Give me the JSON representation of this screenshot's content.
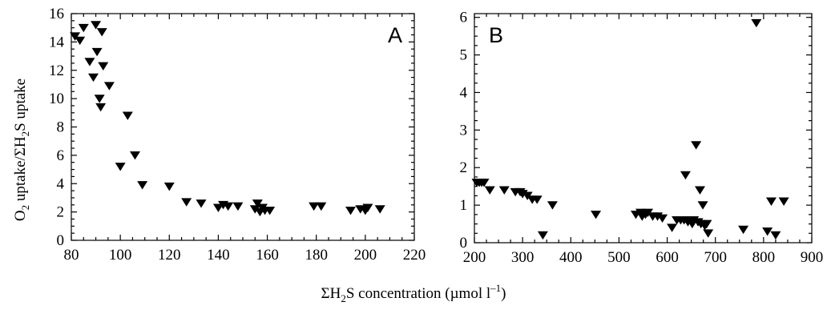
{
  "chart_data": [
    {
      "type": "scatter",
      "panel_label": "A",
      "marker": "filled down-triangle",
      "x_ticks": [
        "80",
        "100",
        "120",
        "140",
        "160",
        "180",
        "200",
        "220"
      ],
      "y_ticks": [
        "0",
        "2",
        "4",
        "6",
        "8",
        "10",
        "12",
        "14",
        "16"
      ],
      "xlim": [
        80,
        220
      ],
      "ylim": [
        0,
        16
      ],
      "ylabel_main": "O",
      "ylabel_sub": "2",
      "ylabel_rest": " uptake/ΣH",
      "ylabel_sub2": "2",
      "ylabel_end": "S uptake",
      "points": [
        [
          81.5,
          14.4
        ],
        [
          83.5,
          14.1
        ],
        [
          85,
          15.0
        ],
        [
          87.5,
          12.6
        ],
        [
          89,
          11.5
        ],
        [
          90,
          15.2
        ],
        [
          90.5,
          13.3
        ],
        [
          91.5,
          10.0
        ],
        [
          92,
          9.4
        ],
        [
          92.5,
          14.7
        ],
        [
          93,
          12.3
        ],
        [
          95.5,
          10.9
        ],
        [
          100,
          5.2
        ],
        [
          103,
          8.8
        ],
        [
          106,
          6.0
        ],
        [
          109,
          3.9
        ],
        [
          120,
          3.8
        ],
        [
          127,
          2.7
        ],
        [
          133,
          2.6
        ],
        [
          140,
          2.3
        ],
        [
          142,
          2.5
        ],
        [
          144,
          2.4
        ],
        [
          148,
          2.4
        ],
        [
          155,
          2.2
        ],
        [
          156,
          2.6
        ],
        [
          157,
          2.0
        ],
        [
          158,
          2.3
        ],
        [
          159,
          2.1
        ],
        [
          161,
          2.1
        ],
        [
          179,
          2.4
        ],
        [
          182,
          2.4
        ],
        [
          194,
          2.1
        ],
        [
          198,
          2.2
        ],
        [
          200,
          2.1
        ],
        [
          201,
          2.3
        ],
        [
          206,
          2.2
        ]
      ]
    },
    {
      "type": "scatter",
      "panel_label": "B",
      "marker": "filled down-triangle",
      "x_ticks": [
        "200",
        "300",
        "400",
        "500",
        "600",
        "700",
        "800",
        "900"
      ],
      "y_ticks": [
        "0",
        "1",
        "2",
        "3",
        "4",
        "5",
        "6"
      ],
      "xlim": [
        200,
        900
      ],
      "ylim": [
        0,
        6.1
      ],
      "points": [
        [
          205,
          1.6
        ],
        [
          210,
          1.6
        ],
        [
          215,
          1.6
        ],
        [
          220,
          1.6
        ],
        [
          232,
          1.4
        ],
        [
          262,
          1.4
        ],
        [
          285,
          1.35
        ],
        [
          295,
          1.35
        ],
        [
          300,
          1.3
        ],
        [
          310,
          1.25
        ],
        [
          320,
          1.15
        ],
        [
          330,
          1.15
        ],
        [
          342,
          0.2
        ],
        [
          362,
          1.0
        ],
        [
          452,
          0.75
        ],
        [
          535,
          0.75
        ],
        [
          545,
          0.8
        ],
        [
          548,
          0.7
        ],
        [
          555,
          0.75
        ],
        [
          560,
          0.8
        ],
        [
          570,
          0.7
        ],
        [
          580,
          0.7
        ],
        [
          590,
          0.65
        ],
        [
          610,
          0.4
        ],
        [
          620,
          0.6
        ],
        [
          628,
          0.6
        ],
        [
          635,
          0.6
        ],
        [
          638,
          1.8
        ],
        [
          643,
          0.55
        ],
        [
          648,
          0.6
        ],
        [
          652,
          0.5
        ],
        [
          655,
          0.6
        ],
        [
          660,
          2.6
        ],
        [
          664,
          0.55
        ],
        [
          668,
          1.4
        ],
        [
          670,
          0.5
        ],
        [
          674,
          1.0
        ],
        [
          678,
          0.45
        ],
        [
          682,
          0.5
        ],
        [
          685,
          0.25
        ],
        [
          758,
          0.35
        ],
        [
          785,
          5.85
        ],
        [
          808,
          0.3
        ],
        [
          816,
          1.1
        ],
        [
          825,
          0.2
        ],
        [
          842,
          1.1
        ]
      ]
    }
  ],
  "xlabel_shared": {
    "part1": "ΣH",
    "sub": "2",
    "part2": "S concentration (µmol l",
    "sup": "–1",
    "part3": ")"
  }
}
